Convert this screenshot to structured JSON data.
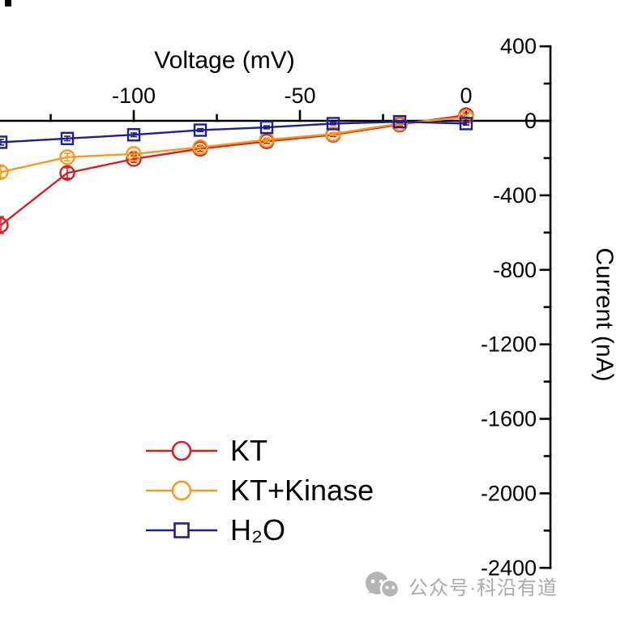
{
  "chart_data": {
    "type": "line",
    "x_axis": {
      "label": "Voltage (mV)",
      "major_ticks": [
        -100,
        -50,
        0
      ],
      "minor_ticks": [
        -125,
        -75,
        -25
      ],
      "visible_range": [
        -141,
        25
      ]
    },
    "y_axis": {
      "label": "Current (nA)",
      "major_ticks": [
        400,
        0,
        -400,
        -800,
        -1200,
        -1600,
        -2000,
        -2400
      ],
      "minor_ticks": [
        200,
        -200,
        -600,
        -1000,
        -1400,
        -1800,
        -2200
      ],
      "range": [
        400,
        -2400
      ]
    },
    "x": [
      -140,
      -120,
      -100,
      -80,
      -60,
      -40,
      -20,
      0
    ],
    "series": [
      {
        "name": "KT",
        "color": "#d81e1e",
        "marker": "circle",
        "values": [
          -560,
          -280,
          -205,
          -150,
          -110,
          -75,
          -20,
          30
        ],
        "errors": [
          45,
          28,
          18,
          14,
          12,
          10,
          8,
          12
        ]
      },
      {
        "name": "KT+Kinase",
        "color": "#f59a1d",
        "marker": "circle",
        "values": [
          -275,
          -195,
          -178,
          -142,
          -102,
          -70,
          -15,
          20
        ],
        "errors": [
          30,
          20,
          15,
          12,
          10,
          8,
          8,
          10
        ]
      },
      {
        "name": "H₂O",
        "color": "#1e1e96",
        "marker": "square",
        "values": [
          -115,
          -95,
          -75,
          -50,
          -35,
          -15,
          -5,
          -15
        ],
        "errors": [
          15,
          12,
          10,
          8,
          8,
          6,
          6,
          8
        ]
      }
    ],
    "legend_position": "bottom-center-left",
    "grid": false
  },
  "watermark": {
    "text": "公众号·科沿有道"
  }
}
